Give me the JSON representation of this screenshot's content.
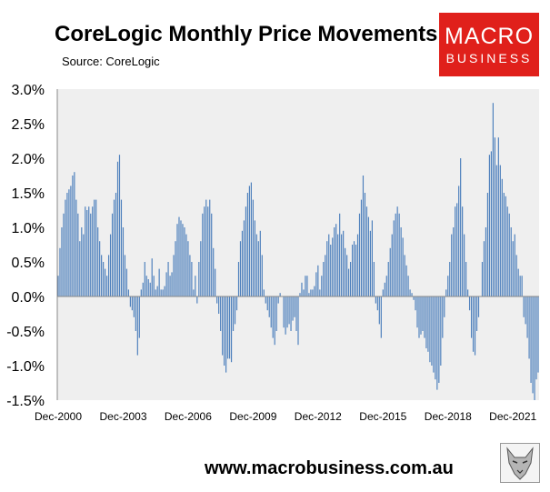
{
  "header": {
    "title": "CoreLogic Monthly Price Movements",
    "source": "Source: CoreLogic"
  },
  "brand": {
    "line1": "MACRO",
    "line2": "BUSINESS",
    "color": "#e0201b"
  },
  "footer": {
    "url": "www.macrobusiness.com.au"
  },
  "chart_data": {
    "type": "bar",
    "title": "CoreLogic Monthly Price Movements",
    "xlabel": "",
    "ylabel": "",
    "ylim": [
      -1.5,
      3.0
    ],
    "yticks": [
      "3.0%",
      "2.5%",
      "2.0%",
      "1.5%",
      "1.0%",
      "0.5%",
      "0.0%",
      "-0.5%",
      "-1.0%",
      "-1.5%"
    ],
    "xticks": [
      "Dec-2000",
      "Dec-2003",
      "Dec-2006",
      "Dec-2009",
      "Dec-2012",
      "Dec-2015",
      "Dec-2018",
      "Dec-2021"
    ],
    "start": "Dec-2000",
    "frequency": "monthly",
    "bar_color": "#4f81bd",
    "plot_background": "#efefef",
    "grid": false,
    "values": [
      0.3,
      0.7,
      1.0,
      1.2,
      1.4,
      1.5,
      1.55,
      1.6,
      1.75,
      1.8,
      1.4,
      1.2,
      0.8,
      1.0,
      0.9,
      1.3,
      1.25,
      1.3,
      1.2,
      1.3,
      1.4,
      1.4,
      1.0,
      0.8,
      0.6,
      0.5,
      0.4,
      0.3,
      0.6,
      0.9,
      1.2,
      1.4,
      1.5,
      1.95,
      2.05,
      1.4,
      1.0,
      0.6,
      0.4,
      0.1,
      -0.15,
      -0.2,
      -0.3,
      -0.5,
      -0.85,
      -0.6,
      0.1,
      0.2,
      0.5,
      0.3,
      0.25,
      0.2,
      0.55,
      0.3,
      0.1,
      0.15,
      0.4,
      0.1,
      0.1,
      0.15,
      0.35,
      0.5,
      0.3,
      0.35,
      0.6,
      0.8,
      1.05,
      1.15,
      1.1,
      1.05,
      1.0,
      0.9,
      0.8,
      0.6,
      0.5,
      0.1,
      0.3,
      -0.1,
      0.5,
      0.8,
      1.2,
      1.3,
      1.4,
      1.3,
      1.4,
      1.2,
      0.7,
      0.4,
      -0.1,
      -0.25,
      -0.5,
      -0.85,
      -1.0,
      -1.1,
      -0.9,
      -0.9,
      -0.95,
      -0.5,
      -0.4,
      -0.2,
      0.5,
      0.8,
      0.95,
      1.1,
      1.3,
      1.5,
      1.6,
      1.65,
      1.4,
      1.1,
      0.9,
      0.8,
      0.95,
      0.6,
      0.1,
      -0.1,
      -0.2,
      -0.3,
      -0.45,
      -0.6,
      -0.7,
      -0.5,
      -0.1,
      0.05,
      0.0,
      -0.45,
      -0.55,
      -0.45,
      -0.4,
      -0.5,
      -0.35,
      -0.3,
      -0.5,
      -0.7,
      0.05,
      0.2,
      0.1,
      0.3,
      0.3,
      0.05,
      0.1,
      0.1,
      0.15,
      0.35,
      0.45,
      0.1,
      0.3,
      0.5,
      0.6,
      0.8,
      0.9,
      0.75,
      0.85,
      1.0,
      1.05,
      0.9,
      1.2,
      0.9,
      0.95,
      0.7,
      0.6,
      0.4,
      0.5,
      0.75,
      0.8,
      0.75,
      0.9,
      1.2,
      1.4,
      1.75,
      1.5,
      1.3,
      1.15,
      0.95,
      1.1,
      0.5,
      -0.1,
      -0.2,
      -0.4,
      -0.6,
      0.1,
      0.2,
      0.3,
      0.5,
      0.7,
      0.9,
      1.1,
      1.2,
      1.3,
      1.2,
      1.0,
      0.85,
      0.6,
      0.45,
      0.3,
      0.1,
      0.05,
      -0.05,
      -0.2,
      -0.45,
      -0.6,
      -0.55,
      -0.5,
      -0.6,
      -0.75,
      -0.8,
      -0.95,
      -1.0,
      -1.1,
      -1.2,
      -1.35,
      -1.25,
      -1.0,
      -0.6,
      -0.3,
      0.1,
      0.3,
      0.5,
      0.9,
      1.0,
      1.3,
      1.35,
      1.6,
      2.0,
      1.3,
      0.9,
      0.5,
      0.1,
      -0.2,
      -0.6,
      -0.8,
      -0.85,
      -0.5,
      -0.3,
      0.0,
      0.5,
      0.8,
      1.0,
      1.5,
      2.05,
      2.1,
      2.8,
      2.3,
      1.9,
      2.3,
      1.9,
      1.7,
      1.5,
      1.45,
      1.3,
      1.2,
      1.0,
      0.8,
      0.9,
      0.6,
      0.4,
      0.3,
      0.3,
      -0.3,
      -0.4,
      -0.6,
      -0.9,
      -1.25,
      -1.4,
      -1.5,
      -1.2,
      -1.1
    ]
  }
}
